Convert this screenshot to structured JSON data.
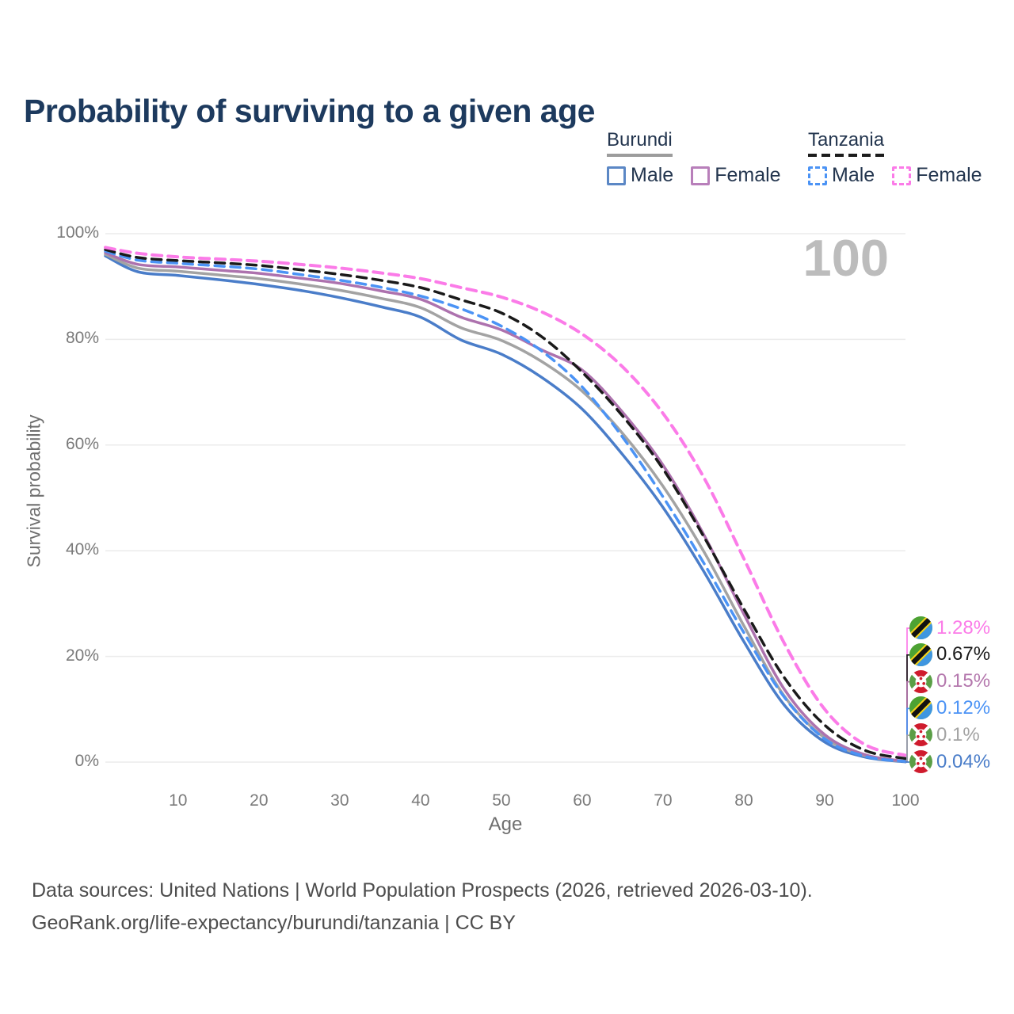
{
  "title": "Probability of surviving to a given age",
  "legend": {
    "burundi": {
      "name": "Burundi",
      "male_label": "Male",
      "female_label": "Female"
    },
    "tanzania": {
      "name": "Tanzania",
      "male_label": "Male",
      "female_label": "Female"
    }
  },
  "chart_data": {
    "type": "line",
    "title": "Probability of surviving to a given age",
    "xlabel": "Age",
    "ylabel": "Survival probability",
    "watermark": "100",
    "xlim": [
      1,
      100
    ],
    "ylim": [
      0,
      100
    ],
    "x_ticks": [
      10,
      20,
      30,
      40,
      50,
      60,
      70,
      80,
      90,
      100
    ],
    "y_ticks": [
      0,
      20,
      40,
      60,
      80,
      100
    ],
    "y_tick_suffix": "%",
    "grid": "horizontal",
    "x": [
      1,
      5,
      10,
      15,
      20,
      25,
      30,
      35,
      40,
      45,
      50,
      55,
      60,
      65,
      70,
      75,
      80,
      85,
      90,
      95,
      100
    ],
    "series": [
      {
        "key": "bi_male",
        "name": "Burundi Male",
        "color": "#4a7dc9",
        "dashed": false,
        "values": [
          95.8,
          92.8,
          92.1,
          91.3,
          90.4,
          89.3,
          87.9,
          86.2,
          84.2,
          79.9,
          77.2,
          72.8,
          66.8,
          58.2,
          48.2,
          36.2,
          22.8,
          10.8,
          3.8,
          0.95,
          0.04
        ]
      },
      {
        "key": "bi_total",
        "name": "Burundi",
        "color": "#a3a3a3",
        "dashed": false,
        "values": [
          96.1,
          93.5,
          92.9,
          92.2,
          91.5,
          90.5,
          89.3,
          87.8,
          86.0,
          82.2,
          79.8,
          75.8,
          70.2,
          62.2,
          52.2,
          40.0,
          25.8,
          12.5,
          4.6,
          1.2,
          0.1
        ]
      },
      {
        "key": "bi_female",
        "name": "Burundi Female",
        "color": "#ad72ae",
        "dashed": false,
        "values": [
          96.4,
          94.2,
          93.7,
          93.1,
          92.5,
          91.6,
          90.6,
          89.2,
          87.6,
          84.2,
          81.8,
          78.0,
          74.2,
          66.2,
          56.2,
          43.2,
          28.0,
          13.8,
          5.2,
          1.4,
          0.15
        ]
      },
      {
        "key": "tz_male",
        "name": "Tanzania Male",
        "color": "#4b93f5",
        "dashed": true,
        "values": [
          96.7,
          95.0,
          94.4,
          93.9,
          93.3,
          92.3,
          91.2,
          89.9,
          88.2,
          85.8,
          82.5,
          77.8,
          71.0,
          61.5,
          50.2,
          37.8,
          24.5,
          12.3,
          4.4,
          1.1,
          0.12
        ]
      },
      {
        "key": "tz_total",
        "name": "Tanzania",
        "color": "#1a1a1a",
        "dashed": true,
        "values": [
          97.0,
          95.5,
          94.9,
          94.5,
          94.0,
          93.2,
          92.3,
          91.2,
          89.8,
          87.5,
          85.0,
          80.5,
          73.8,
          65.5,
          55.5,
          42.8,
          29.0,
          16.0,
          7.0,
          2.2,
          0.67
        ]
      },
      {
        "key": "tz_female",
        "name": "Tanzania Female",
        "color": "#fb7be8",
        "dashed": true,
        "values": [
          97.4,
          96.3,
          95.6,
          95.2,
          94.8,
          94.2,
          93.5,
          92.6,
          91.5,
          89.8,
          88.0,
          85.2,
          81.0,
          74.8,
          66.0,
          54.0,
          38.5,
          22.5,
          10.0,
          3.3,
          1.28
        ]
      }
    ],
    "end_labels": [
      {
        "series": "tz_female",
        "flag": "tanzania",
        "text": "1.28%",
        "color": "#fb7be8"
      },
      {
        "series": "tz_total",
        "flag": "tanzania",
        "text": "0.67%",
        "color": "#1a1a1a"
      },
      {
        "series": "bi_female",
        "flag": "burundi",
        "text": "0.15%",
        "color": "#b477ad"
      },
      {
        "series": "tz_male",
        "flag": "tanzania",
        "text": "0.12%",
        "color": "#4b93f5"
      },
      {
        "series": "bi_total",
        "flag": "burundi",
        "text": "0.1%",
        "color": "#a3a3a3"
      },
      {
        "series": "bi_male",
        "flag": "burundi",
        "text": "0.04%",
        "color": "#4a7dc9"
      }
    ],
    "flag_colors": {
      "tanzania": {
        "green": "#4da233",
        "blue": "#3f96e0",
        "yellow": "#f5d318",
        "black": "#111111"
      },
      "burundi": {
        "red": "#cf1b2d",
        "green": "#5a9e46",
        "white": "#ffffff"
      }
    }
  },
  "footer": {
    "line1": "Data sources: United Nations | World Population Prospects (2026, retrieved 2026-03-10).",
    "line2": "GeoRank.org/life-expectancy/burundi/tanzania | CC BY"
  }
}
